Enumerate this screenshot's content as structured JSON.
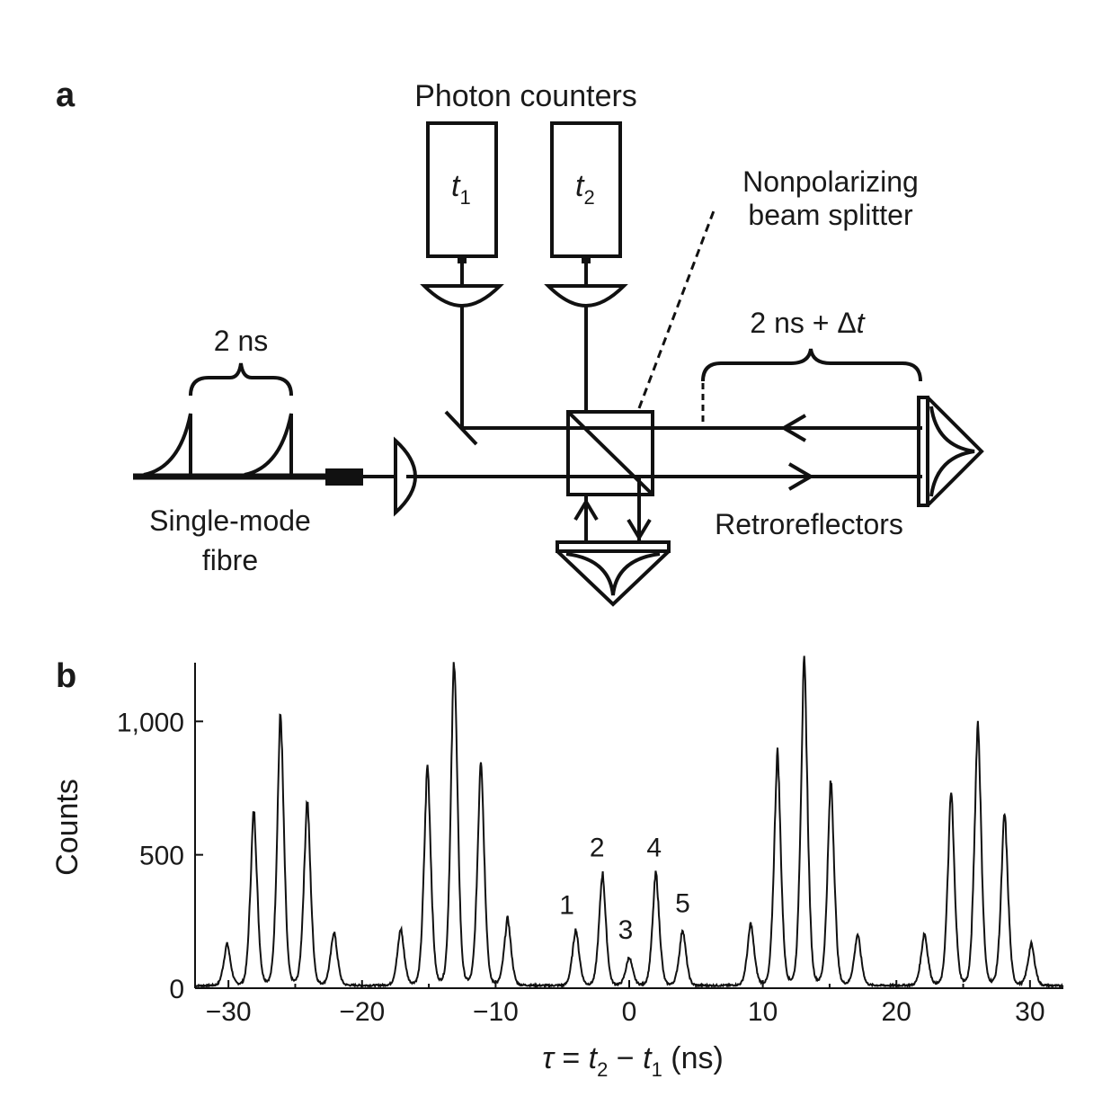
{
  "panel_a": {
    "label": "a",
    "photon_counters": "Photon counters",
    "det1": {
      "t": "t",
      "sub": "1"
    },
    "det2": {
      "t": "t",
      "sub": "2"
    },
    "bs_line1": "Nonpolarizing",
    "bs_line2": "beam splitter",
    "pulse_sep": "2 ns",
    "delay": {
      "prefix": "2 ns + Δ",
      "t": "t"
    },
    "fibre_line1": "Single-mode",
    "fibre_line2": "fibre",
    "retroreflectors": "Retroreflectors"
  },
  "panel_b": {
    "label": "b",
    "ylabel": "Counts",
    "xlabel": {
      "tau": "τ",
      "eq": " = ",
      "t": "t",
      "sub2": "2",
      "minus": " − ",
      "sub1": "1",
      "unit": "  (ns)"
    },
    "peak_labels": [
      "1",
      "2",
      "3",
      "4",
      "5"
    ]
  },
  "chart_data": {
    "type": "line",
    "xlabel": "τ = t2 − t1 (ns)",
    "ylabel": "Counts",
    "xlim": [
      -32.5,
      32.5
    ],
    "ylim": [
      0,
      1220
    ],
    "xticks": [
      -30,
      -20,
      -10,
      0,
      10,
      20,
      30
    ],
    "xtick_labels": [
      "−30",
      "−20",
      "−10",
      "0",
      "10",
      "20",
      "30"
    ],
    "yticks": [
      0,
      500,
      1000
    ],
    "ytick_labels": [
      "0",
      "500",
      "1,000"
    ],
    "baseline": 8,
    "peak_width_ns": 0.28,
    "peaks": [
      {
        "x": -30.1,
        "y": 155
      },
      {
        "x": -28.1,
        "y": 650
      },
      {
        "x": -26.1,
        "y": 1010
      },
      {
        "x": -24.1,
        "y": 690
      },
      {
        "x": -22.1,
        "y": 200
      },
      {
        "x": -17.1,
        "y": 210
      },
      {
        "x": -15.1,
        "y": 820
      },
      {
        "x": -13.1,
        "y": 1220
      },
      {
        "x": -11.1,
        "y": 850
      },
      {
        "x": -9.1,
        "y": 250
      },
      {
        "x": -4.0,
        "y": 210
      },
      {
        "x": -2.0,
        "y": 420
      },
      {
        "x": 0.0,
        "y": 105
      },
      {
        "x": 2.0,
        "y": 420
      },
      {
        "x": 4.0,
        "y": 210
      },
      {
        "x": 9.1,
        "y": 230
      },
      {
        "x": 11.1,
        "y": 870
      },
      {
        "x": 13.1,
        "y": 1200
      },
      {
        "x": 15.1,
        "y": 760
      },
      {
        "x": 17.1,
        "y": 190
      },
      {
        "x": 22.1,
        "y": 195
      },
      {
        "x": 24.1,
        "y": 720
      },
      {
        "x": 26.1,
        "y": 980
      },
      {
        "x": 28.1,
        "y": 640
      },
      {
        "x": 30.1,
        "y": 155
      }
    ],
    "annotations": [
      {
        "text": "1",
        "x": -4.0,
        "y": 210
      },
      {
        "text": "2",
        "x": -2.0,
        "y": 420
      },
      {
        "text": "3",
        "x": 0.0,
        "y": 105
      },
      {
        "text": "4",
        "x": 2.0,
        "y": 420
      },
      {
        "text": "5",
        "x": 4.0,
        "y": 210
      }
    ]
  }
}
